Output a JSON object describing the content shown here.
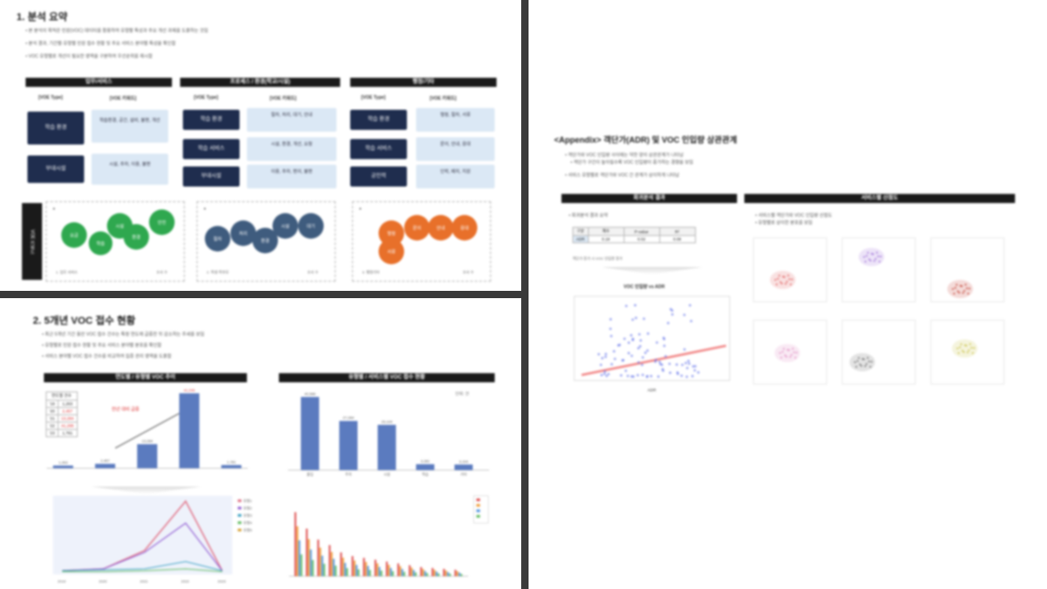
{
  "panel1": {
    "title": "1. 분석 요약",
    "bullets": [
      "본 분석의 목적은 민원(VOC) 데이터를 활용하여 유형별 특성과 주요 개선 과제를 도출하는 것임",
      "분석 결과, 기간별·유형별 민원 접수 현황 및 주요 서비스 분야별 특성을 확인함",
      "VOC 유형별로 개선이 필요한 영역을 구분하여 우선순위를 제시함"
    ],
    "sections": [
      {
        "header": "업무/서비스",
        "col_left": "[VOE Type]",
        "col_right": "[VOE 키워드]",
        "rows": [
          {
            "tag": "학습 환경",
            "keywords": "학습환경, 공간, 설비, 불편, 개선"
          },
          {
            "tag": "부대시설",
            "keywords": "시설, 주차, 이용, 불편"
          }
        ],
        "circles": [
          "요금",
          "학습",
          "시설",
          "환경",
          "안전"
        ],
        "color": "#2fa84f",
        "footer_left": "1. 업무 서비스",
        "footer_right": "조사 수"
      },
      {
        "header": "프로세스 / 환경(학교/시설)",
        "col_left": "[VOE Type]",
        "col_right": "[VOE 키워드]",
        "rows": [
          {
            "tag": "학습 환경",
            "keywords": "절차, 처리, 대기, 안내"
          },
          {
            "tag": "학습 서비스",
            "keywords": "시설, 환경, 개선, 요청"
          },
          {
            "tag": "부대시설",
            "keywords": "이용, 주차, 편의, 불편"
          }
        ],
        "circles": [
          "절차",
          "처리",
          "환경",
          "시설",
          "대기"
        ],
        "color": "#3f5c7e",
        "footer_left": "2. 학생·학부모",
        "footer_right": "조사 수"
      },
      {
        "header": "행정/기타",
        "col_left": "[VOE Type]",
        "col_right": "[VOE 키워드]",
        "rows": [
          {
            "tag": "학습 환경",
            "keywords": "행정, 절차, 서류"
          },
          {
            "tag": "학습 서비스",
            "keywords": "문의, 안내, 응대"
          },
          {
            "tag": "공인력",
            "keywords": "인력, 배치, 지원"
          }
        ],
        "circles": [
          "행정",
          "문의",
          "안내",
          "응대",
          "서류"
        ],
        "color": "#e8702a",
        "footer_left": "3. 행정기타",
        "footer_right": "조사 수"
      }
    ],
    "side_label": "VOE 키워드"
  },
  "panel2": {
    "title": "2. 5개년 VOC 접수 현황",
    "bullets": [
      "최근 5개년 기간 동안 VOC 접수 건수는 특정 연도에 급증한 뒤 감소하는 추세를 보임",
      "유형별로 민원 접수 현황 및 주요 서비스 분야별 분포를 확인함",
      "서비스 분야별 VOC 접수 건수를 비교하여 집중 관리 영역을 도출함"
    ],
    "left_header": "연도별 / 유형별 VOC 추이",
    "right_header": "유형별 / 서비스별 VOC 접수 현황",
    "table_header": "연도별 건수",
    "table_rows": [
      {
        "year": "'19",
        "value": "1,263"
      },
      {
        "year": "'20",
        "value": "2,457"
      },
      {
        "year": "'21",
        "value": "13,284"
      },
      {
        "year": "'22",
        "value": "41,295"
      },
      {
        "year": "'23",
        "value": "1,781"
      }
    ],
    "annotation": "전년 대비 급증",
    "right_note": "단위: 건",
    "left_bars": {
      "categories": [
        "'19",
        "'20",
        "'21",
        "'22",
        "'23"
      ],
      "values": [
        1263,
        2457,
        13284,
        41295,
        1781
      ],
      "labels": [
        "1,263",
        "2,457",
        "13,284",
        "41,295",
        "1,781"
      ]
    },
    "right_bars": {
      "categories": [
        "출입",
        "주차",
        "시설",
        "학습",
        "기타"
      ],
      "values": [
        40586,
        27284,
        25109,
        3281,
        3104
      ],
      "labels": [
        "40,586",
        "27,284",
        "25,109",
        "3,281",
        "3,104"
      ]
    },
    "line_legend": [
      "유형1",
      "유형2",
      "유형3",
      "유형4",
      "유형5"
    ],
    "line_x": [
      "2019",
      "2020",
      "2021",
      "2022",
      "2023"
    ]
  },
  "panel3": {
    "title": "<Appendix> 객단가(ADR) 및 VOC 인입량 상관관계",
    "bullets": [
      "객단가와 VOC 인입량 사이에는 약한 양의 상관관계가 나타남",
      "객단가 구간이 높아질수록 VOC 인입량이 증가하는 경향을 보임",
      "서비스 유형별로 객단가와 VOC 간 관계가 상이하게 나타남"
    ],
    "left_header": "회귀분석 결과",
    "right_header": "서비스별 산점도",
    "left_sub": "회귀분석 결과 요약",
    "reg_table_head": [
      "구분",
      "계수",
      "P-value",
      "R²"
    ],
    "reg_table_row": [
      "ADR",
      "0.18",
      "0.02",
      "0.08"
    ],
    "reg_note": "객단가 증가 시 VOC 인입량 증가",
    "scatter_title": "VOC 인입량 vs ADR",
    "scatter_xlabel": "ADR",
    "right_sub": [
      "서비스별 객단가와 VOC 인입량 산점도",
      "유형별로 상이한 분포를 보임"
    ],
    "mini_colors": [
      "#e05a5a",
      "#9a6ad6",
      "#c0392b",
      "#e08ac0",
      "#666666",
      "#c8c040"
    ]
  }
}
